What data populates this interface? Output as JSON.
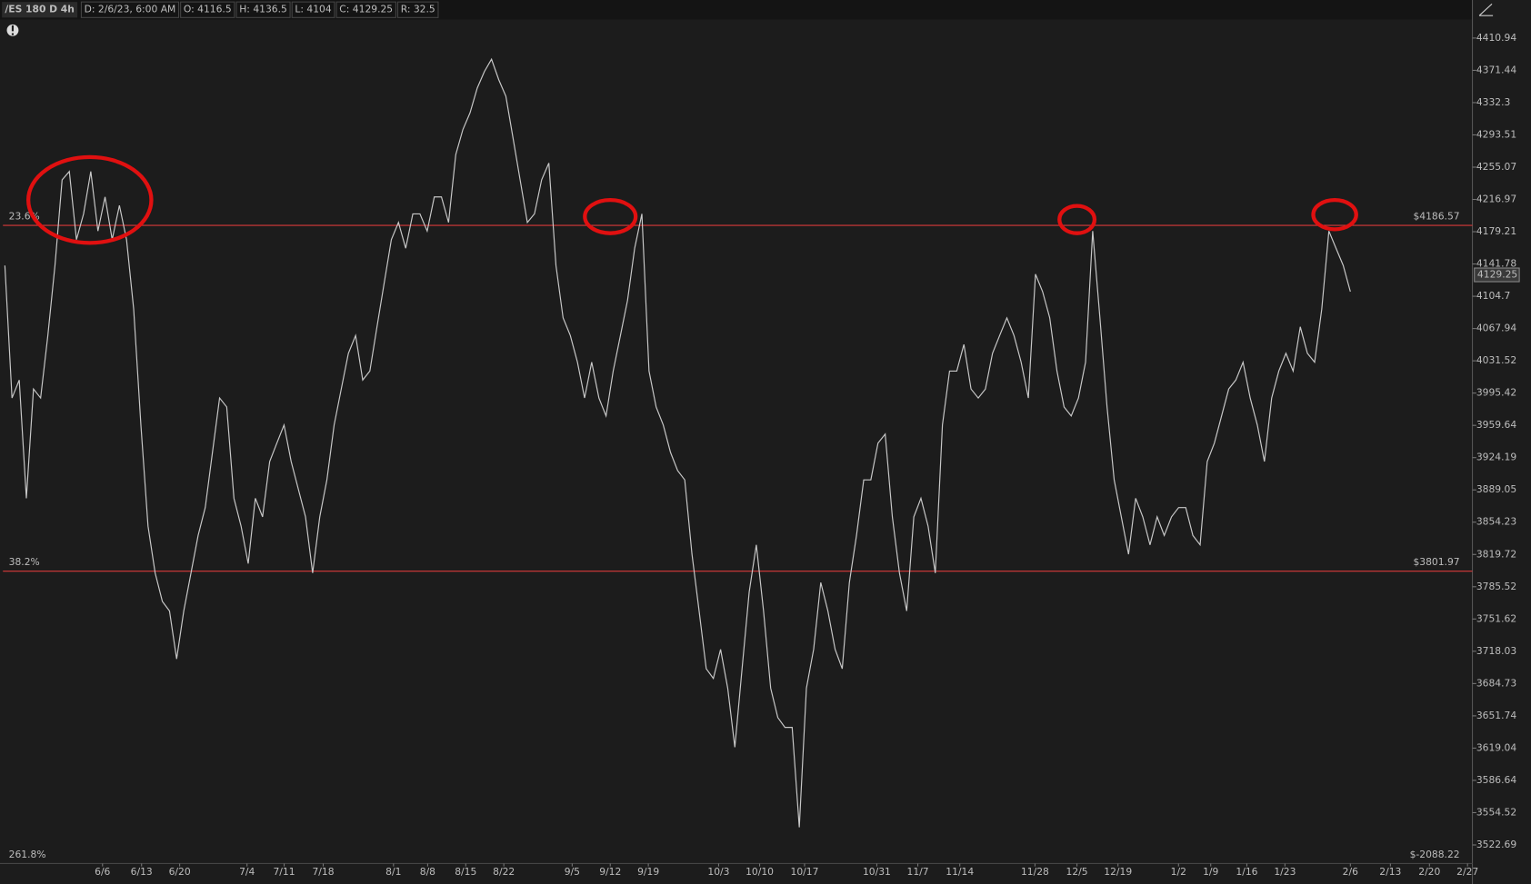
{
  "header": {
    "symbol": "/ES 180 D 4h",
    "fields": [
      "D: 2/6/23, 6:00 AM",
      "O: 4116.5",
      "H: 4136.5",
      "L: 4104",
      "C: 4129.25",
      "R: 32.5"
    ]
  },
  "chart_data": {
    "type": "line",
    "log_scale": true,
    "ylim": [
      3504.5,
      4433.8
    ],
    "yticks": [
      4410.94,
      4371.44,
      4332.3,
      4293.51,
      4255.07,
      4216.97,
      4179.21,
      4141.78,
      4104.7,
      4067.94,
      4031.52,
      3995.42,
      3959.64,
      3924.19,
      3889.05,
      3854.23,
      3819.72,
      3785.52,
      3751.62,
      3718.03,
      3684.73,
      3651.74,
      3619.04,
      3586.64,
      3554.52,
      3522.69
    ],
    "x_labels": [
      "6/6",
      "6/13",
      "6/20",
      "7/4",
      "7/11",
      "7/18",
      "8/1",
      "8/8",
      "8/15",
      "8/22",
      "9/5",
      "9/12",
      "9/19",
      "10/3",
      "10/10",
      "10/17",
      "10/31",
      "11/7",
      "11/14",
      "11/28",
      "12/5",
      "12/19",
      "1/2",
      "1/9",
      "1/16",
      "1/23",
      "2/6",
      "2/13",
      "2/20",
      "2/27"
    ],
    "series": [
      {
        "name": "/ES",
        "color": "#c8c8c8",
        "values": [
          4140,
          3990,
          4010,
          3880,
          4000,
          3990,
          4060,
          4140,
          4240,
          4250,
          4170,
          4200,
          4250,
          4180,
          4220,
          4170,
          4210,
          4170,
          4090,
          3960,
          3850,
          3800,
          3770,
          3760,
          3710,
          3760,
          3800,
          3840,
          3870,
          3930,
          3990,
          3980,
          3880,
          3850,
          3810,
          3880,
          3860,
          3920,
          3940,
          3960,
          3920,
          3890,
          3860,
          3800,
          3860,
          3900,
          3960,
          4000,
          4040,
          4060,
          4010,
          4020,
          4070,
          4120,
          4170,
          4190,
          4160,
          4200,
          4200,
          4180,
          4220,
          4220,
          4190,
          4270,
          4300,
          4320,
          4350,
          4370,
          4385,
          4360,
          4340,
          4290,
          4240,
          4190,
          4200,
          4240,
          4260,
          4140,
          4080,
          4060,
          4030,
          3990,
          4030,
          3990,
          3970,
          4020,
          4060,
          4100,
          4160,
          4200,
          4020,
          3980,
          3960,
          3930,
          3910,
          3900,
          3820,
          3760,
          3700,
          3690,
          3720,
          3680,
          3620,
          3700,
          3780,
          3830,
          3760,
          3680,
          3650,
          3640,
          3640,
          3540,
          3680,
          3720,
          3790,
          3760,
          3720,
          3700,
          3790,
          3840,
          3900,
          3900,
          3940,
          3950,
          3860,
          3800,
          3760,
          3860,
          3880,
          3850,
          3800,
          3960,
          4020,
          4020,
          4050,
          4000,
          3990,
          4000,
          4040,
          4060,
          4080,
          4060,
          4030,
          3990,
          4130,
          4110,
          4080,
          4020,
          3980,
          3970,
          3990,
          4030,
          4180,
          4080,
          3980,
          3900,
          3860,
          3820,
          3880,
          3860,
          3830,
          3860,
          3840,
          3860,
          3870,
          3870,
          3840,
          3830,
          3920,
          3940,
          3970,
          4000,
          4010,
          4030,
          3990,
          3960,
          3920,
          3990,
          4020,
          4040,
          4020,
          4070,
          4040,
          4030,
          4090,
          4180,
          4160,
          4140,
          4110
        ]
      }
    ],
    "fib_levels": [
      {
        "label": "23.6%",
        "price_label": "$4186.57",
        "value": 4186.57,
        "color": "#d83a3a"
      },
      {
        "label": "38.2%",
        "price_label": "$3801.97",
        "value": 3801.97,
        "color": "#d83a3a"
      },
      {
        "label": "261.8%",
        "price_label": "$-2088.22",
        "value": -2088.22,
        "color": "#d83a3a"
      }
    ],
    "last_price": 4129.25
  }
}
